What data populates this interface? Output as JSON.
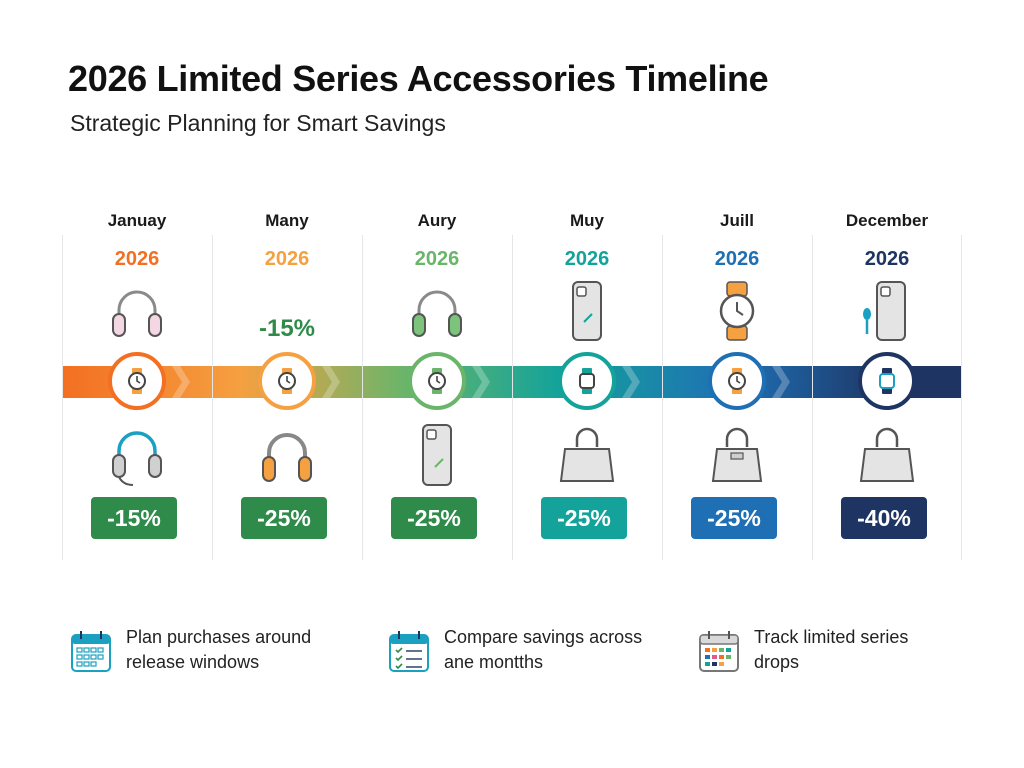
{
  "header": {
    "title": "2026 Limited Series Accessories Timeline",
    "subtitle": "Strategic Planning for Smart Savings"
  },
  "timeline": {
    "columns": [
      {
        "month": "Januay",
        "year": "2026",
        "top_icon": "headphones-icon",
        "top_discount": "",
        "node_icon": "watch-icon",
        "bottom_icon": "headset-icon",
        "discount": "-15%",
        "color": "#f36f21",
        "badge_color": "#2e8b4a",
        "year_color": "#f36f21"
      },
      {
        "month": "Many",
        "year": "2026",
        "top_icon": "",
        "top_discount": "-15%",
        "node_icon": "watch-icon",
        "bottom_icon": "headphones-icon",
        "discount": "-25%",
        "color": "#f5a041",
        "badge_color": "#2e8b4a",
        "year_color": "#f5a041"
      },
      {
        "month": "Aury",
        "year": "2026",
        "top_icon": "headphones-icon",
        "top_discount": "",
        "node_icon": "watch-icon",
        "bottom_icon": "phone-icon",
        "discount": "-25%",
        "color": "#6ab56a",
        "badge_color": "#2e8b4a",
        "year_color": "#6ab56a"
      },
      {
        "month": "Muy",
        "year": "2026",
        "top_icon": "phone-icon",
        "top_discount": "",
        "node_icon": "watch-icon",
        "bottom_icon": "handbag-icon",
        "discount": "-25%",
        "color": "#14a39a",
        "badge_color": "#14a39a",
        "year_color": "#14a39a"
      },
      {
        "month": "Juill",
        "year": "2026",
        "top_icon": "watch-icon",
        "top_discount": "",
        "node_icon": "watch-icon",
        "bottom_icon": "handbag-icon",
        "discount": "-25%",
        "color": "#1f6fb5",
        "badge_color": "#1f6fb5",
        "year_color": "#1f6fb5"
      },
      {
        "month": "December",
        "year": "2026",
        "top_icon": "phone-icon",
        "top_discount": "",
        "node_icon": "watch-icon",
        "bottom_icon": "handbag-icon",
        "discount": "-40%",
        "color": "#1e3563",
        "badge_color": "#1e3563",
        "year_color": "#1e3563"
      }
    ],
    "top_discount_color": "#2e8b4a"
  },
  "tips": [
    {
      "icon": "calendar-grid-icon",
      "line1": "Plan purchases around",
      "line2": "release windows"
    },
    {
      "icon": "checklist-calendar-icon",
      "line1": "Compare savings across",
      "line2": "ane montths"
    },
    {
      "icon": "calendar-dots-icon",
      "line1": "Track limited series",
      "line2": "drops"
    }
  ]
}
